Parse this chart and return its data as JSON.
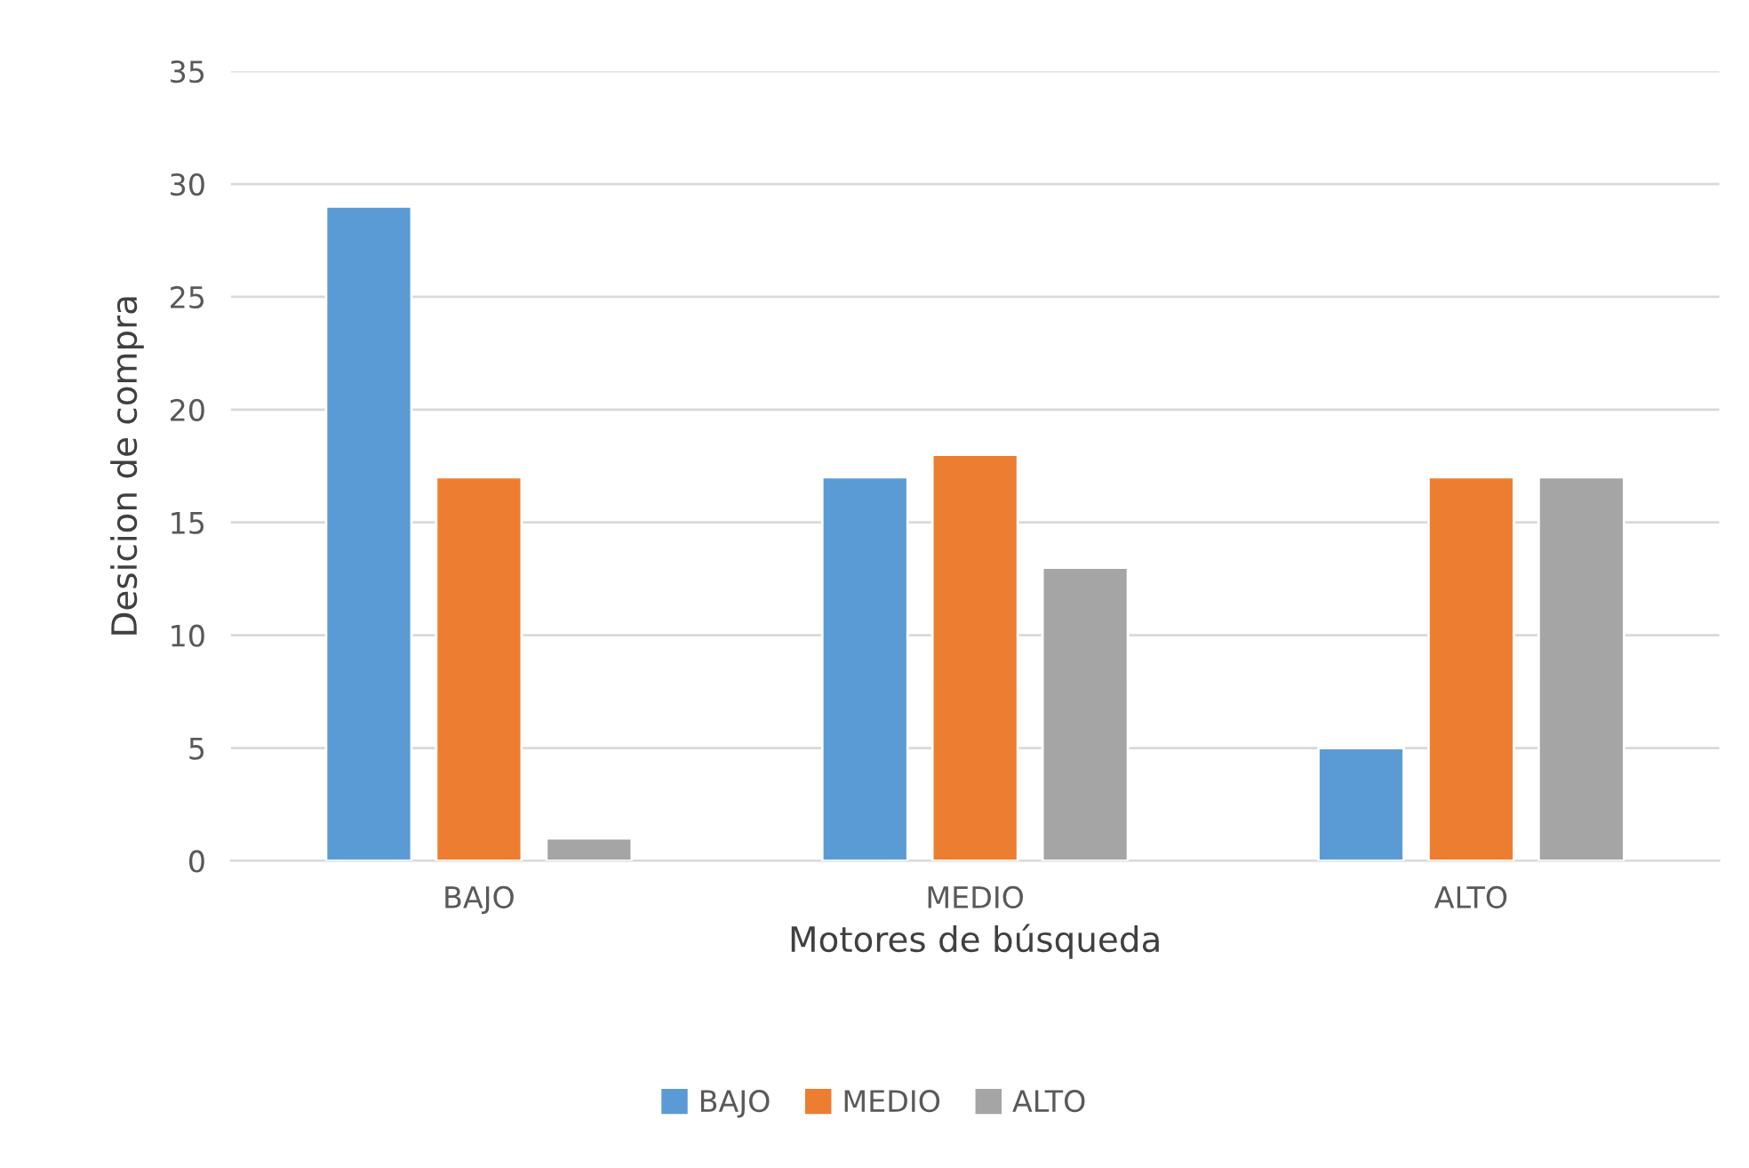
{
  "chart_data": {
    "type": "bar",
    "xlabel": "Motores de búsqueda",
    "ylabel": "Desicion de compra",
    "categories": [
      "BAJO",
      "MEDIO",
      "ALTO"
    ],
    "series": [
      {
        "name": "BAJO",
        "color": "#5b9bd5",
        "values": [
          29,
          17,
          5
        ]
      },
      {
        "name": "MEDIO",
        "color": "#ed7d31",
        "values": [
          17,
          18,
          17
        ]
      },
      {
        "name": "ALTO",
        "color": "#a5a5a5",
        "values": [
          1,
          13,
          17
        ]
      }
    ],
    "ylim": [
      0,
      35
    ],
    "yticks": [
      0,
      5,
      10,
      15,
      20,
      25,
      30,
      35
    ],
    "grid": "y",
    "legend": "bottom"
  }
}
